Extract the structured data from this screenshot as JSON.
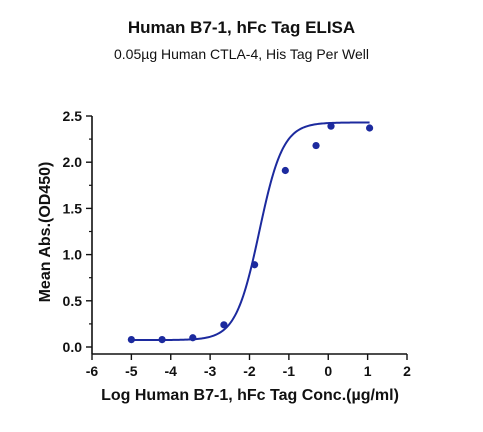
{
  "chart_data": {
    "type": "scatter",
    "title": "Human B7-1, hFc Tag ELISA",
    "subtitle": "0.05µg Human CTLA-4, His Tag Per Well",
    "xlabel": "Log Human B7-1, hFc Tag Conc.(µg/ml)",
    "ylabel": "Mean Abs.(OD450)",
    "xlim": [
      -6,
      2
    ],
    "ylim": [
      0,
      2.5
    ],
    "xticks": [
      "-6",
      "-5",
      "-4",
      "-3",
      "-2",
      "-1",
      "0",
      "1",
      "2"
    ],
    "yticks": [
      "0.0",
      "0.5",
      "1.0",
      "1.5",
      "2.0",
      "2.5"
    ],
    "grid": false,
    "colors": {
      "series": "#1c2a9e",
      "axis": "#111111"
    },
    "series": [
      {
        "x": [
          -5.0,
          -4.22,
          -3.44,
          -2.65,
          -1.87,
          -1.09,
          -0.31,
          0.07,
          1.05
        ],
        "y": [
          0.08,
          0.08,
          0.1,
          0.24,
          0.89,
          1.91,
          2.18,
          2.39,
          2.37
        ],
        "fit": {
          "model": "4PL",
          "bottom": 0.075,
          "top": 2.43,
          "log_ec50": -1.75,
          "hill": 1.45
        }
      }
    ]
  }
}
